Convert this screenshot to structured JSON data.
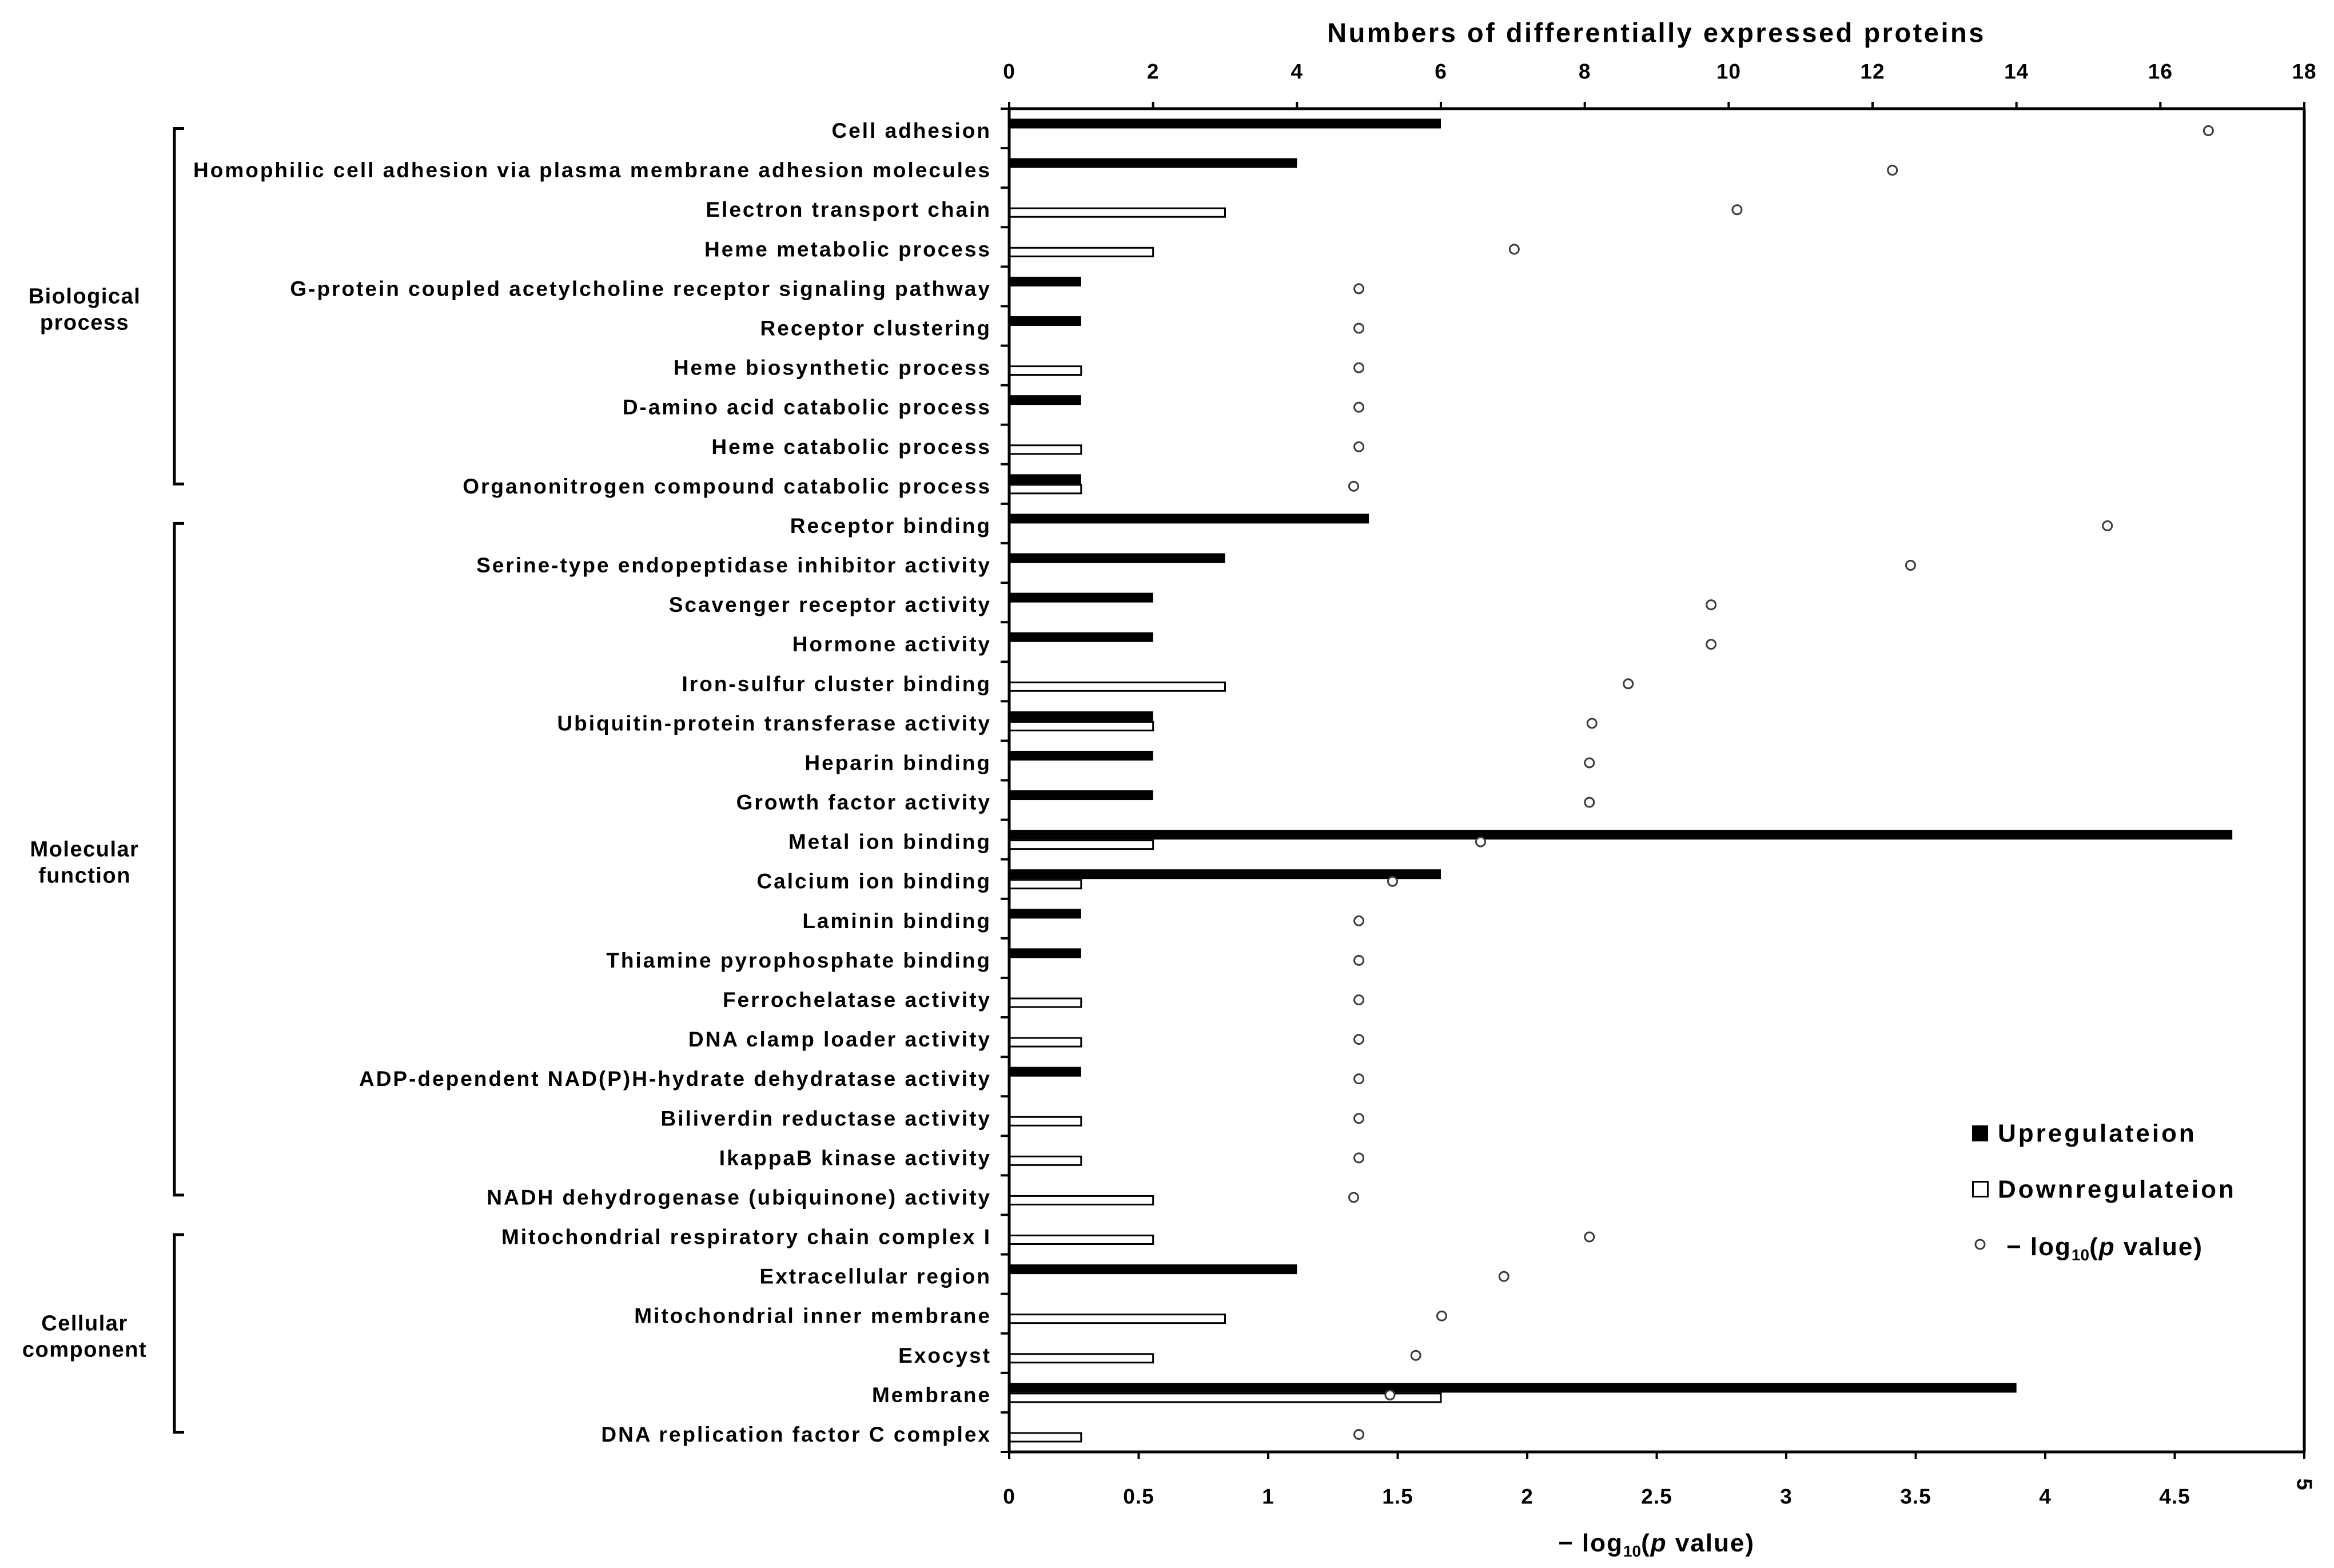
{
  "chart_data": {
    "type": "bar",
    "orientation": "horizontal",
    "overlay_type": "scatter",
    "top_axis": {
      "label": "Numbers of differentially expressed proteins",
      "range": [
        0,
        18
      ],
      "ticks": [
        "0",
        "2",
        "4",
        "6",
        "8",
        "10",
        "12",
        "14",
        "16",
        "18"
      ]
    },
    "bottom_axis": {
      "label_parts": [
        "− log",
        "10",
        "(",
        "p",
        " value)"
      ],
      "range": [
        0,
        5
      ],
      "ticks": [
        "0",
        "0.5",
        "1",
        "1.5",
        "2",
        "2.5",
        "3",
        "3.5",
        "4",
        "4.5",
        "5"
      ]
    },
    "groups": [
      {
        "lines": [
          "Biological",
          "process"
        ],
        "first": 0,
        "last": 9
      },
      {
        "lines": [
          "Molecular",
          "function"
        ],
        "first": 10,
        "last": 27
      },
      {
        "lines": [
          "Cellular",
          "component"
        ],
        "first": 28,
        "last": 33
      }
    ],
    "categories": [
      "Cell adhesion",
      "Homophilic cell adhesion via plasma membrane adhesion molecules",
      "Electron transport chain",
      "Heme metabolic process",
      "G-protein coupled acetylcholine receptor signaling pathway",
      "Receptor clustering",
      "Heme biosynthetic process",
      "D-amino acid catabolic process",
      "Heme catabolic process",
      "Organonitrogen compound catabolic process",
      "Receptor binding",
      "Serine-type endopeptidase inhibitor activity",
      "Scavenger receptor activity",
      "Hormone activity",
      "Iron-sulfur cluster binding",
      "Ubiquitin-protein transferase activity",
      "Heparin binding",
      "Growth factor activity",
      "Metal ion binding",
      "Calcium ion binding",
      "Laminin binding",
      "Thiamine pyrophosphate binding",
      "Ferrochelatase activity",
      "DNA clamp loader activity",
      "ADP-dependent NAD(P)H-hydrate dehydratase activity",
      "Biliverdin reductase activity",
      "IkappaB kinase activity",
      "NADH dehydrogenase (ubiquinone) activity",
      "Mitochondrial respiratory chain complex I",
      "Extracellular region",
      "Mitochondrial inner membrane",
      "Exocyst",
      "Membrane",
      "DNA replication factor C complex"
    ],
    "series": [
      {
        "name": "Upregulateion",
        "kind": "bar",
        "axis": "top",
        "color": "#000000",
        "values": [
          6,
          4,
          0,
          0,
          1,
          1,
          0,
          1,
          0,
          1,
          5,
          3,
          2,
          2,
          0,
          2,
          2,
          2,
          17,
          6,
          1,
          1,
          0,
          0,
          1,
          0,
          0,
          0,
          0,
          4,
          0,
          0,
          14,
          0
        ]
      },
      {
        "name": "Downregulateion",
        "kind": "bar",
        "axis": "top",
        "color": "#ffffff",
        "values": [
          0,
          0,
          3,
          2,
          0,
          0,
          1,
          0,
          1,
          1,
          0,
          0,
          0,
          0,
          3,
          2,
          0,
          0,
          2,
          1,
          0,
          0,
          1,
          1,
          0,
          1,
          1,
          2,
          2,
          0,
          3,
          2,
          6,
          1
        ]
      },
      {
        "name_parts": [
          "− log",
          "10",
          "(",
          "p",
          " value)"
        ],
        "kind": "scatter",
        "axis": "bottom",
        "color": "#3a3a3a",
        "values": [
          4.63,
          3.41,
          2.81,
          1.95,
          1.35,
          1.35,
          1.35,
          1.35,
          1.35,
          1.33,
          4.24,
          3.48,
          2.71,
          2.71,
          2.39,
          2.25,
          2.24,
          2.24,
          1.82,
          1.48,
          1.35,
          1.35,
          1.35,
          1.35,
          1.35,
          1.35,
          1.35,
          1.33,
          2.24,
          1.91,
          1.67,
          1.57,
          1.47,
          1.35
        ]
      }
    ],
    "bar_outline_color": "#000000",
    "legend": "bottom-right",
    "grid": false
  }
}
